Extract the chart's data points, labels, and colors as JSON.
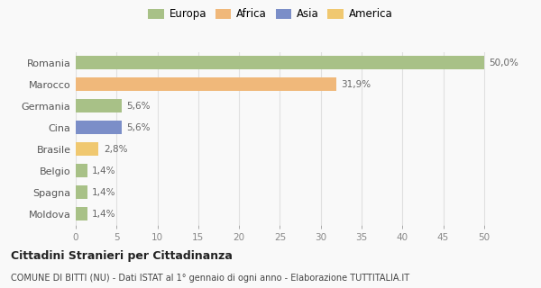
{
  "categories": [
    "Moldova",
    "Spagna",
    "Belgio",
    "Brasile",
    "Cina",
    "Germania",
    "Marocco",
    "Romania"
  ],
  "values": [
    1.4,
    1.4,
    1.4,
    2.8,
    5.6,
    5.6,
    31.9,
    50.0
  ],
  "labels": [
    "1,4%",
    "1,4%",
    "1,4%",
    "2,8%",
    "5,6%",
    "5,6%",
    "31,9%",
    "50,0%"
  ],
  "colors": [
    "#a8c187",
    "#a8c187",
    "#a8c187",
    "#f0c870",
    "#7b8ec8",
    "#a8c187",
    "#f0b87a",
    "#a8c187"
  ],
  "legend_entries": [
    "Europa",
    "Africa",
    "Asia",
    "America"
  ],
  "legend_colors": [
    "#a8c187",
    "#f0b87a",
    "#7b8ec8",
    "#f0c870"
  ],
  "title": "Cittadini Stranieri per Cittadinanza",
  "subtitle": "COMUNE DI BITTI (NU) - Dati ISTAT al 1° gennaio di ogni anno - Elaborazione TUTTITALIA.IT",
  "xlim": [
    0,
    53
  ],
  "xticks": [
    0,
    5,
    10,
    15,
    20,
    25,
    30,
    35,
    40,
    45,
    50
  ],
  "background_color": "#f9f9f9",
  "grid_color": "#e0e0e0",
  "bar_height": 0.6
}
